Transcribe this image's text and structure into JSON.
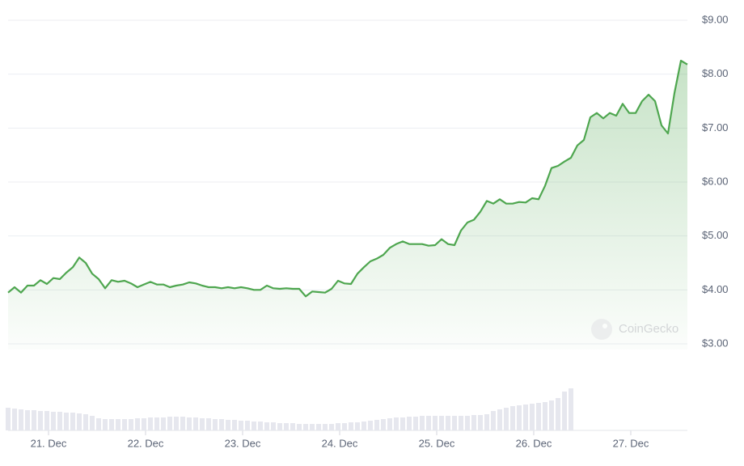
{
  "chart_data": {
    "type": "area",
    "watermark": "CoinGecko",
    "xlim": [
      0,
      105
    ],
    "xticks": [
      {
        "value": 6.25,
        "label": "21. Dec"
      },
      {
        "value": 21.25,
        "label": "22. Dec"
      },
      {
        "value": 36.25,
        "label": "23. Dec"
      },
      {
        "value": 51.25,
        "label": "24. Dec"
      },
      {
        "value": 66.25,
        "label": "25. Dec"
      },
      {
        "value": 81.25,
        "label": "26. Dec"
      },
      {
        "value": 96.25,
        "label": "27. Dec"
      }
    ],
    "ylim": [
      3,
      9
    ],
    "yticks": [
      {
        "value": 3,
        "label": "$3.00"
      },
      {
        "value": 4,
        "label": "$4.00"
      },
      {
        "value": 5,
        "label": "$5.00"
      },
      {
        "value": 6,
        "label": "$6.00"
      },
      {
        "value": 7,
        "label": "$7.00"
      },
      {
        "value": 8,
        "label": "$8.00"
      },
      {
        "value": 9,
        "label": "$9.00"
      }
    ],
    "y2lim": [
      0,
      60
    ],
    "grid": true,
    "series": [
      {
        "name": "Price",
        "color": "#4ea64f",
        "values": [
          3.95,
          4.05,
          3.95,
          4.08,
          4.08,
          4.18,
          4.11,
          4.22,
          4.2,
          4.32,
          4.42,
          4.6,
          4.5,
          4.3,
          4.2,
          4.03,
          4.18,
          4.15,
          4.17,
          4.12,
          4.05,
          4.1,
          4.15,
          4.1,
          4.1,
          4.05,
          4.08,
          4.1,
          4.14,
          4.12,
          4.08,
          4.05,
          4.05,
          4.03,
          4.05,
          4.03,
          4.05,
          4.03,
          4.0,
          4.0,
          4.08,
          4.03,
          4.02,
          4.03,
          4.02,
          4.02,
          3.88,
          3.97,
          3.96,
          3.95,
          4.02,
          4.17,
          4.12,
          4.11,
          4.3,
          4.42,
          4.53,
          4.58,
          4.65,
          4.78,
          4.85,
          4.9,
          4.85,
          4.85,
          4.85,
          4.82,
          4.83,
          4.94,
          4.85,
          4.83,
          5.1,
          5.25,
          5.3,
          5.45,
          5.65,
          5.6,
          5.68,
          5.6,
          5.6,
          5.63,
          5.62,
          5.7,
          5.68,
          5.93,
          6.26,
          6.3,
          6.38,
          6.45,
          6.68,
          6.78,
          7.2,
          7.28,
          7.18,
          7.28,
          7.23,
          7.45,
          7.28,
          7.28,
          7.5,
          7.62,
          7.5,
          7.05,
          6.9,
          7.65,
          8.25,
          8.18
        ]
      },
      {
        "name": "Volume",
        "color": "#e6e7ee",
        "axis": "y2",
        "values": [
          28,
          27,
          26,
          25,
          25,
          24,
          24,
          23,
          23,
          22,
          22,
          21,
          20,
          18,
          15,
          14,
          14,
          14,
          14,
          14,
          15,
          15,
          16,
          16,
          16,
          17,
          17,
          17,
          16,
          16,
          15,
          15,
          14,
          14,
          13,
          13,
          12,
          12,
          11,
          11,
          10,
          10,
          9,
          9,
          9,
          8,
          8,
          8,
          8,
          8,
          8,
          9,
          9,
          10,
          10,
          11,
          12,
          13,
          14,
          15,
          16,
          16,
          17,
          17,
          18,
          18,
          18,
          18,
          18,
          18,
          18,
          18,
          19,
          19,
          20,
          24,
          26,
          28,
          30,
          31,
          32,
          33,
          34,
          35,
          37,
          40,
          48,
          52,
          null,
          null,
          null,
          null,
          null,
          null,
          null,
          null,
          null,
          null,
          null,
          null,
          null,
          null,
          null,
          null,
          null,
          null
        ]
      }
    ]
  }
}
